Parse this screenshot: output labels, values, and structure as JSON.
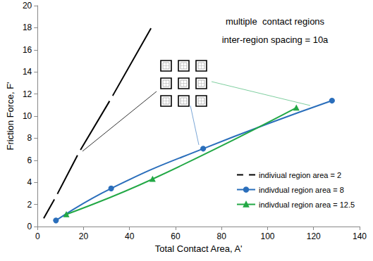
{
  "chart_data": {
    "type": "line",
    "annotations": [
      "multiple  contact regions",
      "inter-region spacing = 10a"
    ],
    "x_label": "Total Contact Area, A'",
    "y_label": "Friction Force, F'",
    "xlim": [
      0,
      140
    ],
    "xticks": [
      0,
      20,
      40,
      60,
      80,
      100,
      120,
      140
    ],
    "ylim": [
      0,
      20
    ],
    "yticks": [
      0,
      2,
      4,
      6,
      8,
      10,
      12,
      14,
      16,
      18,
      20
    ],
    "grid": false,
    "legend": "lower right",
    "series": [
      {
        "name": "indiviual region area = 2",
        "color": "#000000",
        "marker": "open_circle",
        "x": [
          2,
          8,
          18,
          32,
          50
        ],
        "values": [
          0.5,
          2.7,
          6.7,
          11.6,
          18.2
        ]
      },
      {
        "name": "indivdual region area = 8",
        "color": "#2a6ebb",
        "marker": "circle",
        "x": [
          8,
          32,
          72,
          128
        ],
        "values": [
          0.55,
          3.45,
          7.05,
          11.4
        ]
      },
      {
        "name": "indivdual region area = 12.5",
        "color": "#22a845",
        "marker": "triangle",
        "x": [
          12.5,
          50,
          112.5
        ],
        "values": [
          1.1,
          4.3,
          10.75
        ]
      }
    ]
  }
}
